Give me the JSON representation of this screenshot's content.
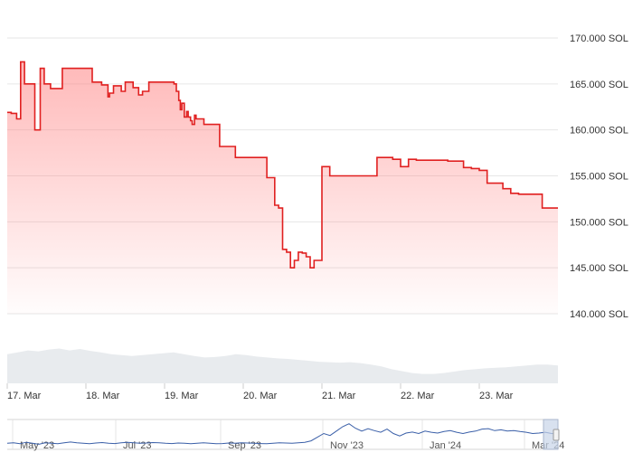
{
  "chart_data": {
    "type": "area",
    "title": "",
    "xlabel": "",
    "ylabel": "",
    "y_unit": "SOL",
    "ylim": [
      140000,
      170000
    ],
    "y_ticks": [
      "170.000 SOL",
      "165.000 SOL",
      "160.000 SOL",
      "155.000 SOL",
      "150.000 SOL",
      "145.000 SOL",
      "140.000 SOL"
    ],
    "y_tick_values": [
      170000,
      165000,
      160000,
      155000,
      150000,
      145000,
      140000
    ],
    "x_ticks": [
      "17. Mar",
      "18. Mar",
      "19. Mar",
      "20. Mar",
      "21. Mar",
      "22. Mar",
      "23. Mar"
    ],
    "xlim_days": [
      17.0,
      24.0
    ],
    "grid": true,
    "colors": {
      "line": "#e02020",
      "fill": "#ff8080",
      "volume": "#e8ebee",
      "navigator_line": "#3a5fa8",
      "navigator_handle": "#c8d4e8"
    },
    "series": [
      {
        "x": [
          17.0,
          17.05,
          17.12,
          17.17,
          17.22,
          17.3,
          17.35,
          17.42,
          17.47,
          17.55,
          17.6,
          17.7,
          17.85,
          18.0,
          18.08,
          18.15,
          18.2,
          18.28,
          18.3,
          18.35,
          18.45,
          18.5,
          18.6,
          18.67,
          18.72,
          18.8,
          18.85,
          19.0,
          19.1,
          19.12,
          19.15,
          19.18,
          19.2,
          19.22,
          19.25,
          19.28,
          19.3,
          19.33,
          19.35,
          19.38,
          19.4,
          19.5,
          19.55,
          19.6,
          19.7,
          19.8,
          19.9,
          20.0,
          20.1,
          20.25,
          20.3,
          20.35,
          20.4,
          20.45,
          20.5,
          20.55,
          20.6,
          20.65,
          20.7,
          20.75,
          20.8,
          20.85,
          20.9,
          20.95,
          21.0,
          21.05,
          21.1,
          21.15,
          21.2,
          21.3,
          21.5,
          21.7,
          21.9,
          22.0,
          22.1,
          22.15,
          22.2,
          22.3,
          22.4,
          22.6,
          22.8,
          22.9,
          23.0,
          23.1,
          23.2,
          23.3,
          23.4,
          23.5,
          23.6,
          23.7,
          23.8,
          23.9,
          24.0
        ],
        "values": [
          161900,
          161800,
          161200,
          167400,
          165000,
          165000,
          160000,
          166700,
          165000,
          164500,
          164500,
          166700,
          166700,
          166700,
          165200,
          165200,
          164900,
          163600,
          164000,
          164800,
          164200,
          165200,
          164600,
          163800,
          164200,
          165200,
          165200,
          165200,
          165200,
          165000,
          164200,
          163200,
          162200,
          162900,
          161400,
          162000,
          161400,
          161000,
          160600,
          161600,
          161200,
          160600,
          160600,
          160600,
          158200,
          158200,
          157000,
          157000,
          157000,
          157000,
          154800,
          154800,
          151800,
          151500,
          147000,
          146700,
          145000,
          145800,
          146700,
          146600,
          146200,
          145000,
          145800,
          145800,
          156000,
          156000,
          155000,
          155000,
          155000,
          155000,
          155000,
          157000,
          156800,
          156000,
          156800,
          156800,
          156700,
          156700,
          156700,
          156600,
          155900,
          155800,
          155600,
          154200,
          154200,
          153600,
          153100,
          153000,
          153000,
          153000,
          151500,
          151500,
          151500
        ]
      }
    ],
    "volume_relative": [
      0.62,
      0.66,
      0.7,
      0.68,
      0.72,
      0.74,
      0.7,
      0.73,
      0.69,
      0.66,
      0.62,
      0.6,
      0.58,
      0.6,
      0.62,
      0.64,
      0.66,
      0.62,
      0.58,
      0.55,
      0.56,
      0.58,
      0.62,
      0.6,
      0.57,
      0.55,
      0.53,
      0.52,
      0.5,
      0.48,
      0.46,
      0.45,
      0.44,
      0.45,
      0.43,
      0.4,
      0.36,
      0.3,
      0.26,
      0.22,
      0.2,
      0.2,
      0.22,
      0.25,
      0.28,
      0.3,
      0.32,
      0.33,
      0.34,
      0.36,
      0.38,
      0.4,
      0.4,
      0.38
    ],
    "navigator": {
      "x_ticks": [
        "May '23",
        "Jul '23",
        "Sep '23",
        "Nov '23",
        "Jan '24",
        "Mar '24"
      ],
      "values": [
        0.1,
        0.12,
        0.08,
        0.14,
        0.1,
        0.06,
        0.12,
        0.1,
        0.08,
        0.12,
        0.15,
        0.12,
        0.1,
        0.08,
        0.11,
        0.13,
        0.1,
        0.09,
        0.12,
        0.14,
        0.12,
        0.1,
        0.11,
        0.13,
        0.12,
        0.1,
        0.09,
        0.11,
        0.1,
        0.08,
        0.1,
        0.12,
        0.1,
        0.08,
        0.09,
        0.11,
        0.1,
        0.12,
        0.11,
        0.1,
        0.09,
        0.08,
        0.1,
        0.12,
        0.11,
        0.1,
        0.12,
        0.14,
        0.2,
        0.35,
        0.5,
        0.42,
        0.6,
        0.78,
        0.9,
        0.72,
        0.6,
        0.7,
        0.62,
        0.55,
        0.68,
        0.5,
        0.4,
        0.52,
        0.56,
        0.5,
        0.6,
        0.55,
        0.52,
        0.58,
        0.62,
        0.55,
        0.5,
        0.56,
        0.6,
        0.68,
        0.7,
        0.62,
        0.65,
        0.6,
        0.62,
        0.58,
        0.55,
        0.5,
        0.52,
        0.55,
        0.5,
        0.48
      ]
    }
  }
}
